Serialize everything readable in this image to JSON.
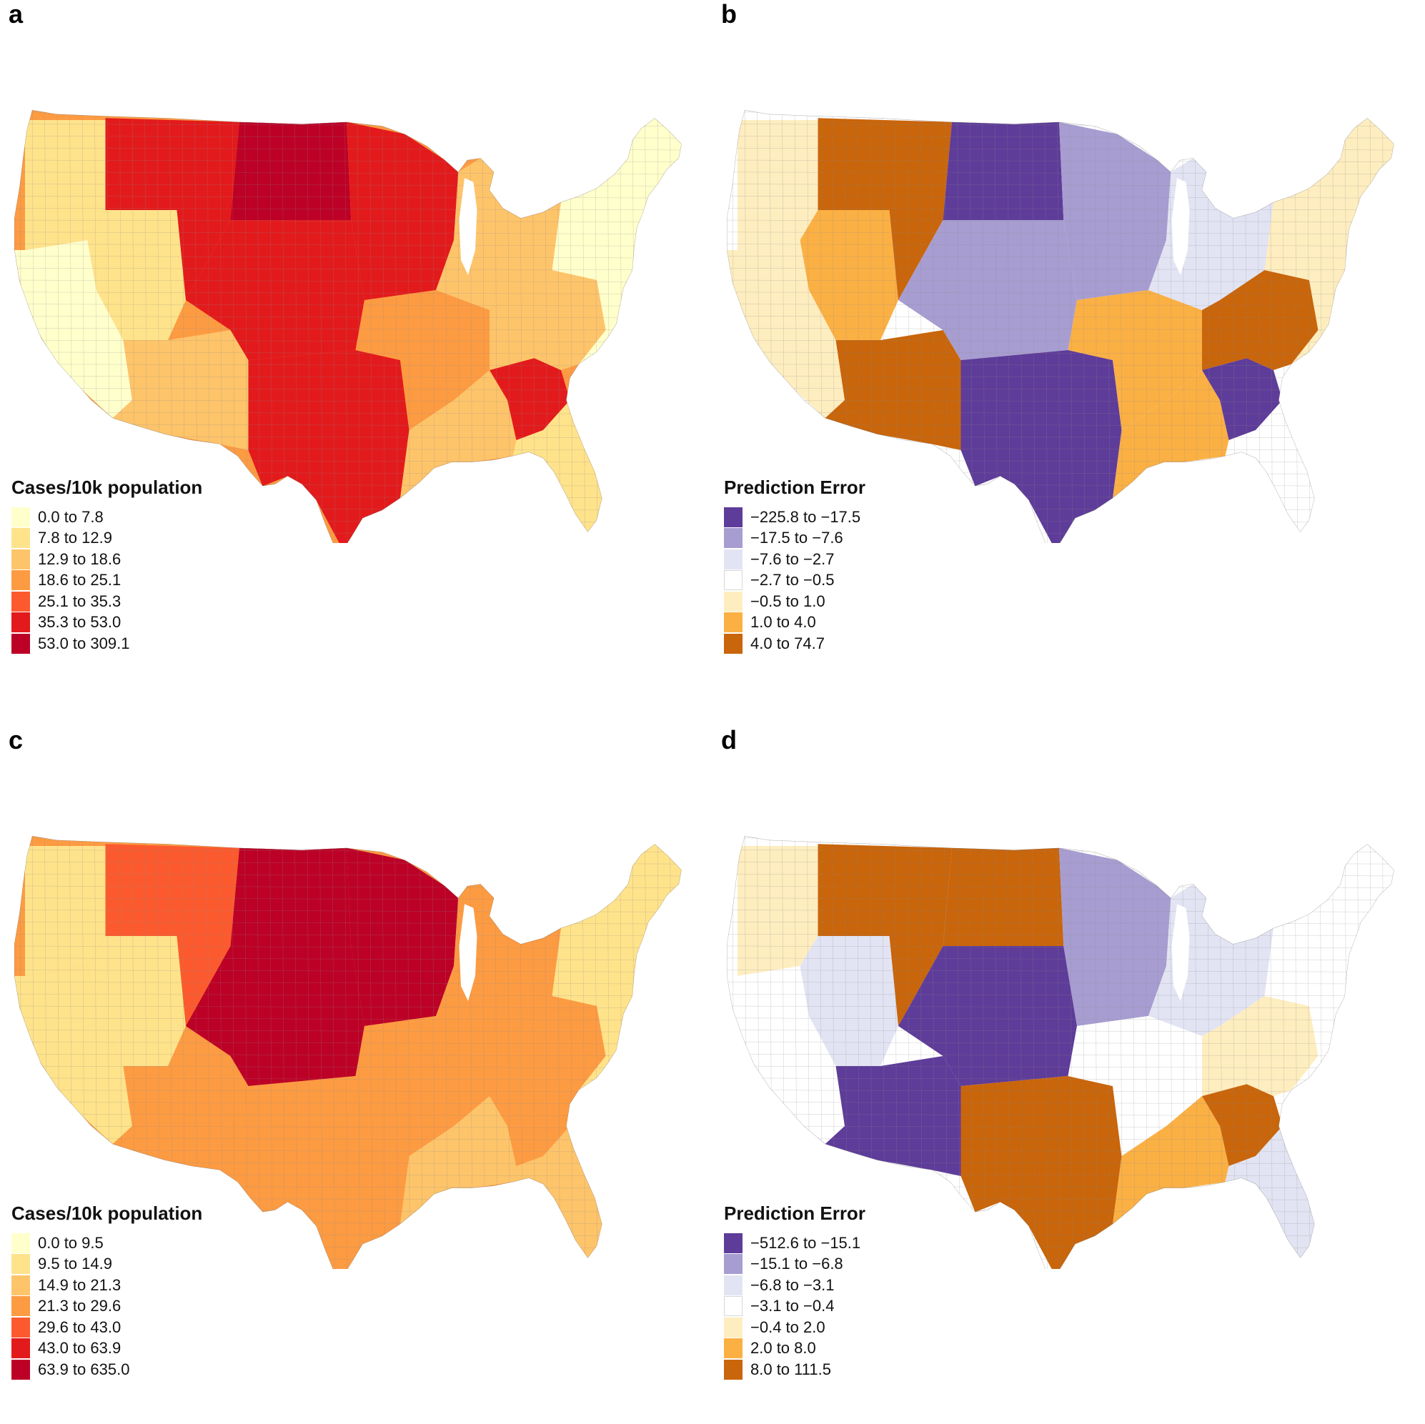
{
  "panels": [
    {
      "id": "a",
      "label": "a",
      "legend_title": "Cases/10k population",
      "classes": [
        {
          "label": "0.0 to 7.8",
          "color": "#ffffcc"
        },
        {
          "label": "7.8 to 12.9",
          "color": "#ffe38b"
        },
        {
          "label": "12.9 to 18.6",
          "color": "#fec46a"
        },
        {
          "label": "18.6 to 25.1",
          "color": "#fd9b42"
        },
        {
          "label": "25.1 to 35.3",
          "color": "#fc5a2e"
        },
        {
          "label": "35.3 to 53.0",
          "color": "#e31a1c"
        },
        {
          "label": "53.0 to 309.1",
          "color": "#bd0026"
        }
      ],
      "regions": {
        "pacific_nw": 1,
        "west_coast": 0,
        "great_basin": 1,
        "southwest": 2,
        "rockies_north": 5,
        "northern_plains": 6,
        "central_plains": 5,
        "texas": 5,
        "upper_midwest": 5,
        "mid_south": 3,
        "great_lakes": 2,
        "southeast": 2,
        "georgia": 5,
        "florida": 1,
        "appalachia": 2,
        "northeast": 0
      }
    },
    {
      "id": "b",
      "label": "b",
      "legend_title": "Prediction Error",
      "classes": [
        {
          "label": "−225.8 to −17.5",
          "color": "#5e3c99"
        },
        {
          "label": "−17.5 to −7.6",
          "color": "#a79dd1"
        },
        {
          "label": "−7.6 to −2.7",
          "color": "#e2e4f3"
        },
        {
          "label": "−2.7 to −0.5",
          "color": "#ffffff"
        },
        {
          "label": "−0.5 to 1.0",
          "color": "#feedbf"
        },
        {
          "label": "1.0 to 4.0",
          "color": "#fbb044"
        },
        {
          "label": "4.0 to 74.7",
          "color": "#c9650b"
        }
      ],
      "regions": {
        "pacific_nw": 4,
        "west_coast": 4,
        "great_basin": 5,
        "southwest": 6,
        "rockies_north": 6,
        "northern_plains": 0,
        "central_plains": 1,
        "texas": 0,
        "upper_midwest": 1,
        "mid_south": 5,
        "great_lakes": 2,
        "southeast": 5,
        "georgia": 0,
        "florida": 3,
        "appalachia": 6,
        "northeast": 4
      }
    },
    {
      "id": "c",
      "label": "c",
      "legend_title": "Cases/10k population",
      "classes": [
        {
          "label": "0.0 to 9.5",
          "color": "#ffffcc"
        },
        {
          "label": "9.5 to 14.9",
          "color": "#ffe38b"
        },
        {
          "label": "14.9 to 21.3",
          "color": "#fec46a"
        },
        {
          "label": "21.3 to 29.6",
          "color": "#fd9b42"
        },
        {
          "label": "29.6 to 43.0",
          "color": "#fc5a2e"
        },
        {
          "label": "43.0 to 63.9",
          "color": "#e31a1c"
        },
        {
          "label": "63.9 to 635.0",
          "color": "#bd0026"
        }
      ],
      "regions": {
        "pacific_nw": 1,
        "west_coast": 1,
        "great_basin": 1,
        "southwest": 3,
        "rockies_north": 4,
        "northern_plains": 6,
        "central_plains": 6,
        "texas": 3,
        "upper_midwest": 6,
        "mid_south": 3,
        "great_lakes": 3,
        "southeast": 2,
        "georgia": 3,
        "florida": 2,
        "appalachia": 3,
        "northeast": 1
      }
    },
    {
      "id": "d",
      "label": "d",
      "legend_title": "Prediction Error",
      "classes": [
        {
          "label": "−512.6 to −15.1",
          "color": "#5e3c99"
        },
        {
          "label": "−15.1 to −6.8",
          "color": "#a79dd1"
        },
        {
          "label": "−6.8 to −3.1",
          "color": "#e2e4f3"
        },
        {
          "label": "−3.1 to −0.4",
          "color": "#ffffff"
        },
        {
          "label": "−0.4 to 2.0",
          "color": "#feedbf"
        },
        {
          "label": "2.0 to 8.0",
          "color": "#fbb044"
        },
        {
          "label": "8.0 to 111.5",
          "color": "#c9650b"
        }
      ],
      "regions": {
        "pacific_nw": 4,
        "west_coast": 3,
        "great_basin": 2,
        "southwest": 0,
        "rockies_north": 6,
        "northern_plains": 6,
        "central_plains": 0,
        "texas": 6,
        "upper_midwest": 1,
        "mid_south": 3,
        "great_lakes": 2,
        "southeast": 5,
        "georgia": 6,
        "florida": 2,
        "appalachia": 4,
        "northeast": 3
      }
    }
  ]
}
